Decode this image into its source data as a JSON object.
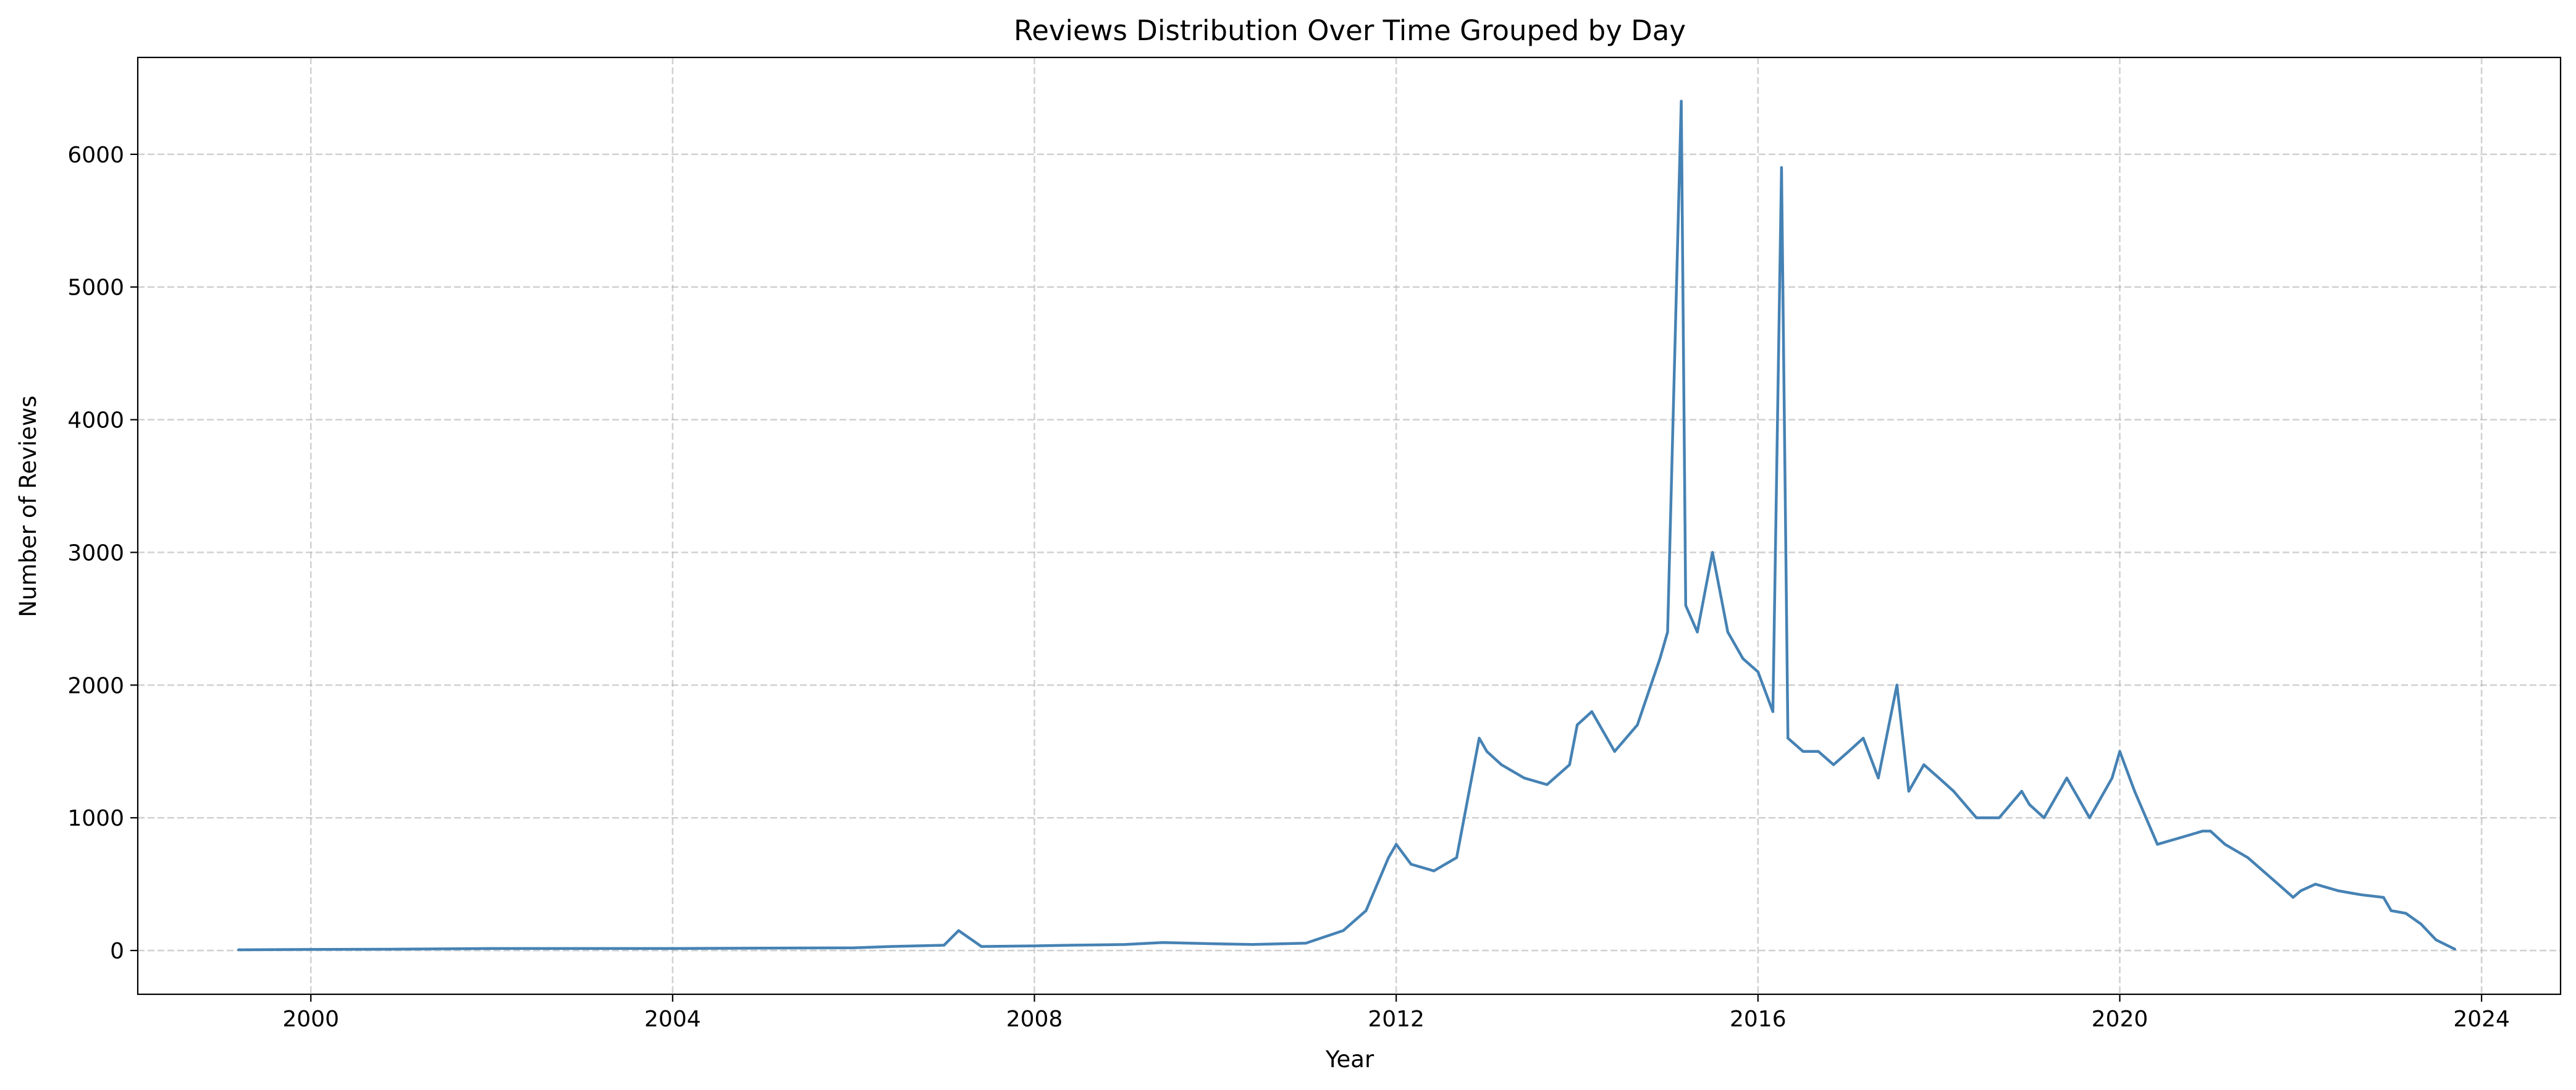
{
  "chart_data": {
    "type": "line",
    "title": "Reviews Distribution Over Time Grouped by Day",
    "xlabel": "Year",
    "ylabel": "Number of Reviews",
    "x_ticks": [
      "2000",
      "2004",
      "2008",
      "2012",
      "2016",
      "2020",
      "2024"
    ],
    "y_ticks": [
      "0",
      "1000",
      "2000",
      "3000",
      "4000",
      "5000",
      "6000"
    ],
    "xlim": [
      "1998-02-01",
      "2024-11-15"
    ],
    "ylim": [
      -330,
      6730
    ],
    "grid": true,
    "color": "#4682b4",
    "series": [
      {
        "x": [
          "1999-03-15",
          "2000-01-01",
          "2001-01-01",
          "2002-01-01",
          "2003-01-01",
          "2004-01-01",
          "2005-01-01",
          "2006-01-01",
          "2006-06-01",
          "2007-01-01",
          "2007-03-01",
          "2007-06-01",
          "2008-01-01",
          "2008-06-01",
          "2009-01-01",
          "2009-06-01",
          "2010-01-01",
          "2010-06-01",
          "2011-01-01",
          "2011-06-01",
          "2011-09-01",
          "2011-12-01",
          "2012-01-01",
          "2012-03-01",
          "2012-06-01",
          "2012-09-01",
          "2012-12-01",
          "2013-01-01",
          "2013-03-01",
          "2013-06-01",
          "2013-09-01",
          "2013-12-01",
          "2014-01-01",
          "2014-03-01",
          "2014-06-01",
          "2014-09-01",
          "2014-12-01",
          "2015-01-01",
          "2015-02-25",
          "2015-03-15",
          "2015-05-01",
          "2015-07-01",
          "2015-09-01",
          "2015-11-01",
          "2016-01-01",
          "2016-03-01",
          "2016-04-05",
          "2016-05-01",
          "2016-07-01",
          "2016-09-01",
          "2016-11-01",
          "2017-01-01",
          "2017-03-01",
          "2017-05-01",
          "2017-07-15",
          "2017-09-01",
          "2017-11-01",
          "2018-01-01",
          "2018-03-01",
          "2018-06-01",
          "2018-09-01",
          "2018-12-01",
          "2019-01-01",
          "2019-03-01",
          "2019-06-01",
          "2019-09-01",
          "2019-12-01",
          "2020-01-01",
          "2020-03-01",
          "2020-06-01",
          "2020-09-01",
          "2020-12-01",
          "2021-01-01",
          "2021-03-01",
          "2021-06-01",
          "2021-09-01",
          "2021-12-01",
          "2022-01-01",
          "2022-03-01",
          "2022-06-01",
          "2022-09-01",
          "2022-12-01",
          "2023-01-01",
          "2023-03-01",
          "2023-05-01",
          "2023-07-01",
          "2023-09-15"
        ],
        "values": [
          5,
          8,
          10,
          15,
          15,
          15,
          18,
          20,
          30,
          40,
          150,
          30,
          35,
          40,
          45,
          60,
          50,
          45,
          55,
          150,
          300,
          700,
          800,
          650,
          600,
          700,
          1600,
          1500,
          1400,
          1300,
          1250,
          1400,
          1700,
          1800,
          1500,
          1700,
          2200,
          2400,
          6400,
          2600,
          2400,
          3000,
          2400,
          2200,
          2100,
          1800,
          5900,
          1600,
          1500,
          1500,
          1400,
          1500,
          1600,
          1300,
          2000,
          1200,
          1400,
          1300,
          1200,
          1000,
          1000,
          1200,
          1100,
          1000,
          1300,
          1000,
          1300,
          1500,
          1200,
          800,
          850,
          900,
          900,
          800,
          700,
          550,
          400,
          450,
          500,
          450,
          420,
          400,
          300,
          280,
          200,
          80,
          10
        ]
      }
    ]
  }
}
